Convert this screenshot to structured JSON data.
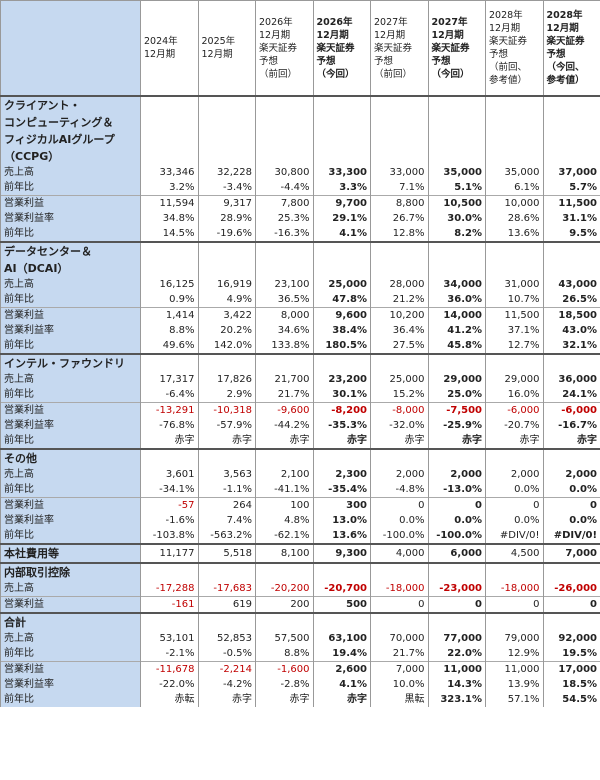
{
  "table": {
    "header": [
      "2024年\n12月期",
      "2025年\n12月期",
      "2026年\n12月期\n楽天証券\n予想\n（前回）",
      "2026年\n12月期\n楽天証券\n予想\n（今回）",
      "2027年\n12月期\n楽天証券\n予想\n（前回）",
      "2027年\n12月期\n楽天証券\n予想\n（今回）",
      "2028年\n12月期\n楽天証券\n予想\n（前回、\n参考値）",
      "2028年\n12月期\n楽天証券\n予想\n（今回、\n参考値）"
    ],
    "sections": [
      {
        "title": "クライアント・\nコンピューティング＆\nフィジカルAIグループ\n（CCPG）",
        "rows": [
          {
            "label": "売上高",
            "cells": [
              "33,346",
              "32,228",
              "30,800",
              "33,300",
              "33,000",
              "35,000",
              "35,000",
              "37,000"
            ]
          },
          {
            "label": "前年比",
            "cells": [
              "3.2%",
              "-3.4%",
              "-4.4%",
              "3.3%",
              "7.1%",
              "5.1%",
              "6.1%",
              "5.7%"
            ]
          },
          {
            "label": "営業利益",
            "cells": [
              "11,594",
              "9,317",
              "7,800",
              "9,700",
              "8,800",
              "10,500",
              "10,000",
              "11,500"
            ]
          },
          {
            "label": "営業利益率",
            "cells": [
              "34.8%",
              "28.9%",
              "25.3%",
              "29.1%",
              "26.7%",
              "30.0%",
              "28.6%",
              "31.1%"
            ]
          },
          {
            "label": "前年比",
            "cells": [
              "14.5%",
              "-19.6%",
              "-16.3%",
              "4.1%",
              "12.8%",
              "8.2%",
              "13.6%",
              "9.5%"
            ]
          }
        ]
      },
      {
        "title": "データセンター＆\nAI（DCAI）",
        "rows": [
          {
            "label": "売上高",
            "cells": [
              "16,125",
              "16,919",
              "23,100",
              "25,000",
              "28,000",
              "34,000",
              "31,000",
              "43,000"
            ]
          },
          {
            "label": "前年比",
            "cells": [
              "0.9%",
              "4.9%",
              "36.5%",
              "47.8%",
              "21.2%",
              "36.0%",
              "10.7%",
              "26.5%"
            ]
          },
          {
            "label": "営業利益",
            "cells": [
              "1,414",
              "3,422",
              "8,000",
              "9,600",
              "10,200",
              "14,000",
              "11,500",
              "18,500"
            ]
          },
          {
            "label": "営業利益率",
            "cells": [
              "8.8%",
              "20.2%",
              "34.6%",
              "38.4%",
              "36.4%",
              "41.2%",
              "37.1%",
              "43.0%"
            ]
          },
          {
            "label": "前年比",
            "cells": [
              "49.6%",
              "142.0%",
              "133.8%",
              "180.5%",
              "27.5%",
              "45.8%",
              "12.7%",
              "32.1%"
            ]
          }
        ]
      },
      {
        "title": "インテル・ファウンドリ",
        "rows": [
          {
            "label": "売上高",
            "cells": [
              "17,317",
              "17,826",
              "21,700",
              "23,200",
              "25,000",
              "29,000",
              "29,000",
              "36,000"
            ]
          },
          {
            "label": "前年比",
            "cells": [
              "-6.4%",
              "2.9%",
              "21.7%",
              "30.1%",
              "15.2%",
              "25.0%",
              "16.0%",
              "24.1%"
            ]
          },
          {
            "label": "営業利益",
            "cells": [
              "-13,291",
              "-10,318",
              "-9,600",
              "-8,200",
              "-8,000",
              "-7,500",
              "-6,000",
              "-6,000"
            ]
          },
          {
            "label": "営業利益率",
            "cells": [
              "-76.8%",
              "-57.9%",
              "-44.2%",
              "-35.3%",
              "-32.0%",
              "-25.9%",
              "-20.7%",
              "-16.7%"
            ]
          },
          {
            "label": "前年比",
            "cells": [
              "赤字",
              "赤字",
              "赤字",
              "赤字",
              "赤字",
              "赤字",
              "赤字",
              "赤字"
            ]
          }
        ]
      },
      {
        "title": "その他",
        "rows": [
          {
            "label": "売上高",
            "cells": [
              "3,601",
              "3,563",
              "2,100",
              "2,300",
              "2,000",
              "2,000",
              "2,000",
              "2,000"
            ]
          },
          {
            "label": "前年比",
            "cells": [
              "-34.1%",
              "-1.1%",
              "-41.1%",
              "-35.4%",
              "-4.8%",
              "-13.0%",
              "0.0%",
              "0.0%"
            ]
          },
          {
            "label": "営業利益",
            "cells": [
              "-57",
              "264",
              "100",
              "300",
              "0",
              "0",
              "0",
              "0"
            ]
          },
          {
            "label": "営業利益率",
            "cells": [
              "-1.6%",
              "7.4%",
              "4.8%",
              "13.0%",
              "0.0%",
              "0.0%",
              "0.0%",
              "0.0%"
            ]
          },
          {
            "label": "前年比",
            "cells": [
              "-103.8%",
              "-563.2%",
              "-62.1%",
              "13.6%",
              "-100.0%",
              "-100.0%",
              "#DIV/0!",
              "#DIV/0!"
            ]
          }
        ]
      },
      {
        "title": "本社費用等",
        "cells": [
          "11,177",
          "5,518",
          "8,100",
          "9,300",
          "4,000",
          "6,000",
          "4,500",
          "7,000"
        ],
        "rows": []
      },
      {
        "title": "内部取引控除",
        "rows": [
          {
            "label": "売上高",
            "cells": [
              "-17,288",
              "-17,683",
              "-20,200",
              "-20,700",
              "-18,000",
              "-23,000",
              "-18,000",
              "-26,000"
            ]
          },
          {
            "label": "営業利益",
            "cells": [
              "-161",
              "619",
              "200",
              "500",
              "0",
              "0",
              "0",
              "0"
            ]
          }
        ]
      },
      {
        "title": "合計",
        "rows": [
          {
            "label": "売上高",
            "cells": [
              "53,101",
              "52,853",
              "57,500",
              "63,100",
              "70,000",
              "77,000",
              "79,000",
              "92,000"
            ]
          },
          {
            "label": "前年比",
            "cells": [
              "-2.1%",
              "-0.5%",
              "8.8%",
              "19.4%",
              "21.7%",
              "22.0%",
              "12.9%",
              "19.5%"
            ]
          },
          {
            "label": "営業利益",
            "cells": [
              "-11,678",
              "-2,214",
              "-1,600",
              "2,600",
              "7,000",
              "11,000",
              "11,000",
              "17,000"
            ]
          },
          {
            "label": "営業利益率",
            "cells": [
              "-22.0%",
              "-4.2%",
              "-2.8%",
              "4.1%",
              "10.0%",
              "14.3%",
              "13.9%",
              "18.5%"
            ]
          },
          {
            "label": "前年比",
            "cells": [
              "赤転",
              "赤字",
              "赤字",
              "赤字",
              "黒転",
              "323.1%",
              "57.1%",
              "54.5%"
            ]
          }
        ]
      }
    ]
  }
}
